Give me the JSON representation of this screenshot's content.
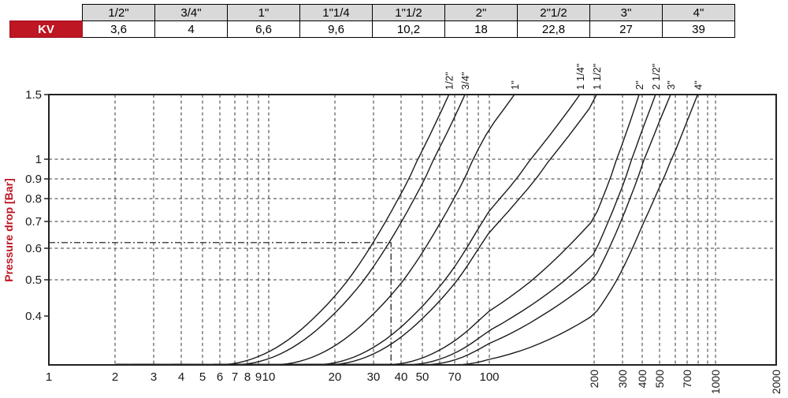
{
  "kv_table": {
    "row_label": "KV",
    "sizes": [
      "1/2\"",
      "3/4\"",
      "1\"",
      "1\"1/4",
      "1\"1/2",
      "2\"",
      "2\"1/2",
      "3\"",
      "4\""
    ],
    "kv_values": [
      "3,6",
      "4",
      "6,6",
      "9,6",
      "10,2",
      "18",
      "22,8",
      "27",
      "39"
    ]
  },
  "chart_data": {
    "type": "line",
    "title": "",
    "xlabel": "",
    "ylabel": "Pressure drop [Bar]",
    "x_scale": "log",
    "y_scale": "log",
    "x_range": [
      1,
      2000
    ],
    "y_range": [
      0.3,
      1.5
    ],
    "grid": "dashed",
    "y_tick_labels": [
      "1.5",
      "1",
      "0.9",
      "0.8",
      "0.7",
      "0.6",
      "0.5",
      "0.4"
    ],
    "y_tick_values": [
      1.5,
      1.0,
      0.9,
      0.8,
      0.7,
      0.6,
      0.5,
      0.4
    ],
    "y_gridline_values": [
      1.0,
      0.9,
      0.8,
      0.7,
      0.6,
      0.5
    ],
    "x_tick_labels_horizontal": [
      "1",
      "2",
      "3",
      "4",
      "5",
      "6",
      "7",
      "8",
      "9",
      "10",
      "20",
      "30",
      "40",
      "50",
      "70",
      "100"
    ],
    "x_tick_values_horizontal": [
      1,
      2,
      3,
      4,
      5,
      6,
      7,
      8,
      9,
      10,
      20,
      30,
      40,
      50,
      70,
      100
    ],
    "x_tick_labels_rotated": [
      "200",
      "300",
      "400",
      "500",
      "700",
      "1000",
      "2000"
    ],
    "x_tick_values_rotated": [
      200,
      300,
      400,
      500,
      700,
      1000,
      2000
    ],
    "x_gridline_values": [
      2,
      3,
      4,
      5,
      6,
      7,
      8,
      9,
      10,
      20,
      30,
      40,
      50,
      60,
      70,
      80,
      90,
      100,
      200,
      300,
      400,
      500,
      600,
      700,
      800,
      900,
      1000
    ],
    "series": [
      {
        "label": "1/2\"",
        "kv": 3.6,
        "flow_at_max_pressure": 66
      },
      {
        "label": "3/4\"",
        "kv": 4,
        "flow_at_max_pressure": 78
      },
      {
        "label": "1\"",
        "kv": 6.6,
        "flow_at_max_pressure": 118
      },
      {
        "label": "1 1/4\"",
        "kv": 9.6,
        "flow_at_max_pressure": 182
      },
      {
        "label": "1 1/2\"",
        "kv": 10.2,
        "flow_at_max_pressure": 207
      },
      {
        "label": "2\"",
        "kv": 18,
        "flow_at_max_pressure": 382
      },
      {
        "label": "2 1/2\"",
        "kv": 22.8,
        "flow_at_max_pressure": 475
      },
      {
        "label": "3\"",
        "kv": 27,
        "flow_at_max_pressure": 568
      },
      {
        "label": "4\"",
        "kv": 39,
        "flow_at_max_pressure": 795
      }
    ],
    "reference_point": {
      "flow": 36,
      "pressure_drop": 0.62
    },
    "colors": {
      "accent_red": "#be1622",
      "curve": "#1a1a1a",
      "grid": "#3a3a3a",
      "table_header_bg": "#d9d9d9",
      "border": "#222222"
    }
  }
}
